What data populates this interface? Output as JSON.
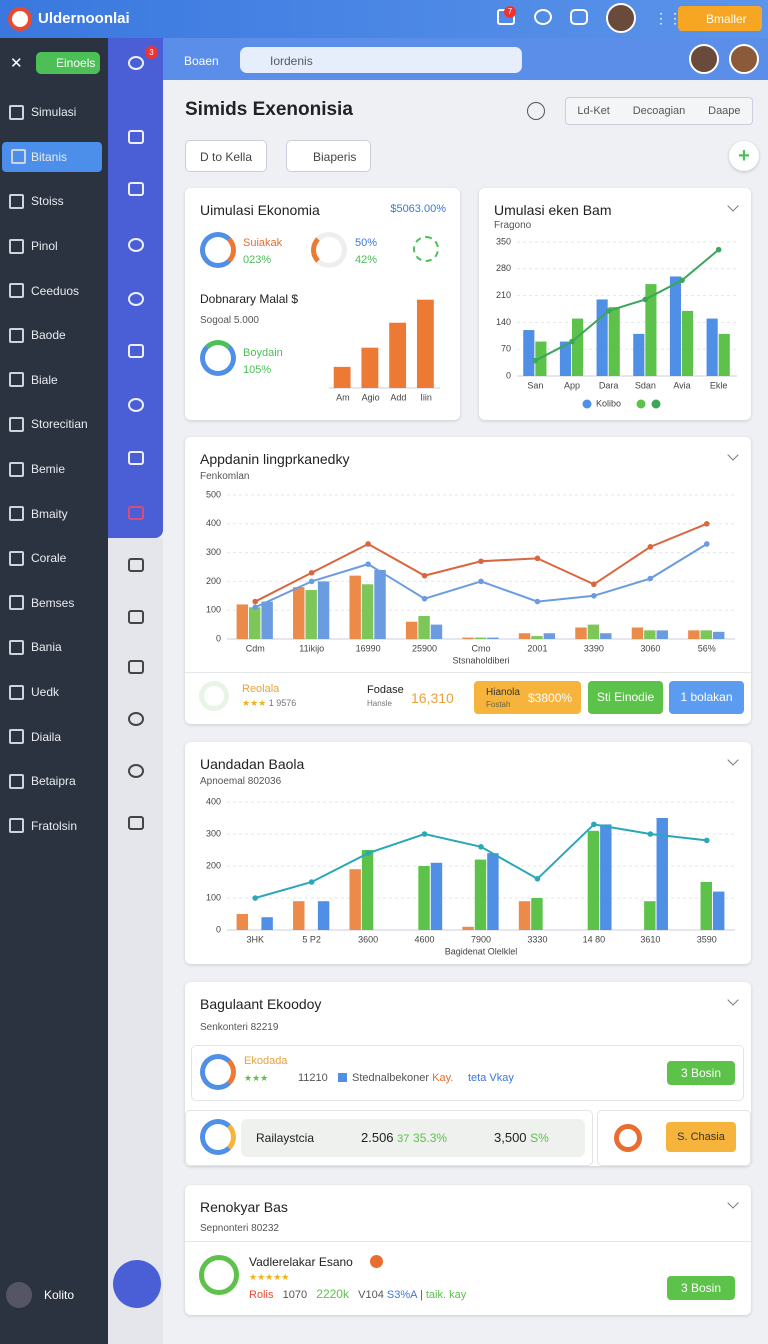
{
  "topbar": {
    "brand": "Uldernoonlai",
    "badge": "7",
    "action": "Bmaller"
  },
  "sidebar": {
    "tag": "Einoels",
    "active": 1,
    "items": [
      "Simulasi",
      "Bitanis",
      "Stoiss",
      "Pinol",
      "Ceeduos",
      "Baode",
      "Biale",
      "Storecitian",
      "Bemie",
      "Bmaity",
      "Corale",
      "Bemses",
      "Bania",
      "Uedk",
      "Diaila",
      "Betaipra",
      "Fratolsin"
    ],
    "footer": "Kolito"
  },
  "rail": {
    "badge": "3"
  },
  "header": {
    "label": "Boaen",
    "search": "Iordenis"
  },
  "page": {
    "title": "Simids Exenonisia",
    "tabs": [
      "Ld-Ket",
      "Decoagian",
      "Daape"
    ],
    "buttons": [
      "D to Kella",
      "Biaperis"
    ]
  },
  "card1": {
    "title": "Uimulasi Ekonomia",
    "amount": "$5063.00%",
    "stats": [
      {
        "label": "Suiakak",
        "value": "023%"
      },
      {
        "label": "50%",
        "value": "42%"
      }
    ],
    "subtitle": "Dobnarary Malal $",
    "note": "Sogoal 5.000",
    "stat3": {
      "label": "Boydain",
      "value": "105%"
    }
  },
  "card3_footer": {
    "item1": "Reolala",
    "item1_value": "1 9576",
    "item2": "Fodase",
    "item2_sub": "Hansle",
    "item2_value": "16,310",
    "badge_label": "Hianola",
    "badge_sub": "Fostah",
    "badge_value": "$3800%",
    "button1": "Sti Einodie",
    "button2": "1 bolakan"
  },
  "card5": {
    "title": "Bagulaant Ekoodoy",
    "subtitle": "Senkonteri 82219",
    "row1": {
      "label": "Ekodada",
      "value": "11210",
      "text": "Stednalbekoner",
      "accent": "Kay.",
      "link": "teta Vkay",
      "button": "3 Bosin"
    },
    "row2": {
      "label": "Railaystcia",
      "v1": "2.506",
      "v2": "37",
      "v3": "35.3%",
      "v4": "3,500",
      "v5": "S%",
      "button": "S. Chasia"
    }
  },
  "card6": {
    "title": "Renokyar Bas",
    "subtitle": "Sepnonteri 80232",
    "label": "Vadlerelakar Esano",
    "tag": "Rolis",
    "v1": "1070",
    "v2": "2220k",
    "v3": "V104",
    "v4": "S3%A",
    "link": "taik. kay",
    "button": "3 Bosin"
  },
  "chart_data": [
    {
      "type": "bar",
      "categories": [
        "Am",
        "Agio",
        "Add",
        "Iiin"
      ],
      "values": [
        22,
        42,
        68,
        92
      ],
      "color": "#ec7a35",
      "ylim": [
        0,
        100
      ]
    },
    {
      "type": "combo",
      "title": "Umulasi eken Bam",
      "subtitle": "Fragono",
      "categories": [
        "San",
        "App",
        "Dara",
        "Sdan",
        "Avia",
        "Ekle"
      ],
      "ylim": [
        0,
        350
      ],
      "yticks": [
        0,
        70,
        140,
        210,
        280,
        350
      ],
      "grid": true,
      "series": [
        {
          "name": "Kolibo",
          "type": "bar",
          "color": "#4f8fe6",
          "values": [
            120,
            90,
            200,
            110,
            260,
            150
          ]
        },
        {
          "type": "bar",
          "color": "#5cc24a",
          "values": [
            90,
            150,
            180,
            240,
            170,
            110
          ]
        },
        {
          "type": "line",
          "color": "#3aa75a",
          "values": [
            40,
            90,
            170,
            200,
            250,
            330
          ]
        }
      ]
    },
    {
      "type": "combo",
      "title": "Appdanin lingprkanedky",
      "subtitle": "Fenkomlan",
      "xlabel": "Stsnaholdiberi",
      "categories": [
        "Cdm",
        "11ikijo",
        "16990",
        "25900",
        "Cmo",
        "2001",
        "3390",
        "3060",
        "56%"
      ],
      "ylim": [
        0,
        500
      ],
      "yticks": [
        0,
        100,
        200,
        300,
        400,
        500
      ],
      "grid": true,
      "series": [
        {
          "type": "bar",
          "color": "#ec8a4a",
          "values": [
            120,
            180,
            220,
            60,
            5,
            20,
            40,
            40,
            30
          ]
        },
        {
          "type": "bar",
          "color": "#7cc65a",
          "values": [
            110,
            170,
            190,
            80,
            5,
            10,
            50,
            30,
            30
          ]
        },
        {
          "type": "bar",
          "color": "#6b9be0",
          "values": [
            130,
            200,
            240,
            50,
            5,
            20,
            20,
            30,
            25
          ]
        },
        {
          "type": "line",
          "color": "#d9663f",
          "values": [
            130,
            230,
            330,
            220,
            270,
            280,
            190,
            320,
            400
          ]
        },
        {
          "type": "line",
          "color": "#6b9be0",
          "values": [
            110,
            200,
            260,
            140,
            200,
            130,
            150,
            210,
            330
          ]
        }
      ]
    },
    {
      "type": "combo",
      "title": "Uandadan Baola",
      "subtitle": "Apnoemal 802036",
      "xlabel": "Bagidenat Olelklel",
      "categories": [
        "3HK",
        "5 P2",
        "3600",
        "4600",
        "7900",
        "3330",
        "14 80",
        "3610",
        "3590"
      ],
      "ylim": [
        0,
        400
      ],
      "yticks": [
        0,
        100,
        200,
        300,
        400
      ],
      "grid": true,
      "series": [
        {
          "type": "bar",
          "color": "#ec8a4a",
          "values": [
            50,
            90,
            190,
            0,
            10,
            90,
            0,
            0,
            0
          ]
        },
        {
          "type": "bar",
          "color": "#5cc24a",
          "values": [
            0,
            0,
            250,
            200,
            220,
            100,
            310,
            90,
            150
          ]
        },
        {
          "type": "bar",
          "color": "#4f8fe6",
          "values": [
            40,
            90,
            0,
            210,
            240,
            0,
            330,
            350,
            120
          ]
        },
        {
          "type": "line",
          "color": "#2aa7b8",
          "values": [
            100,
            150,
            240,
            300,
            260,
            160,
            330,
            300,
            280
          ]
        }
      ]
    }
  ]
}
